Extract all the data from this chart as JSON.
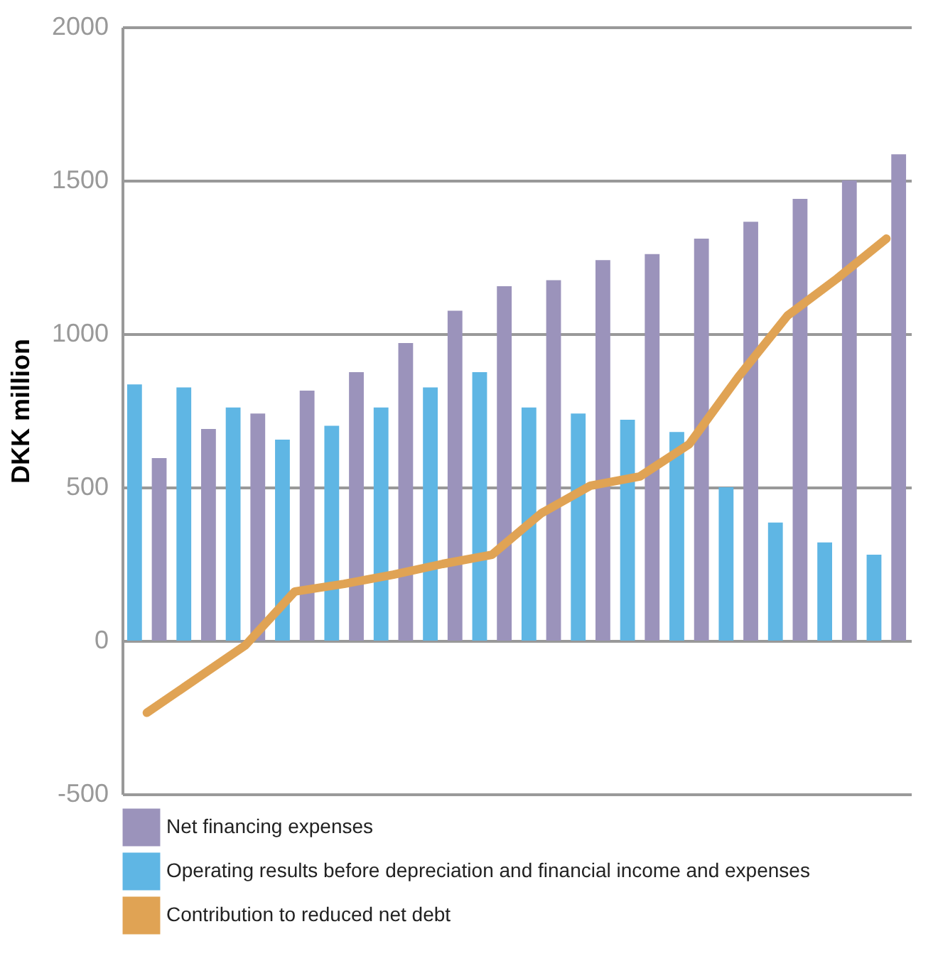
{
  "chart_data": {
    "type": "bar",
    "ylabel": "DKK million",
    "categories": [
      null,
      null,
      null,
      null,
      null,
      null,
      null,
      null,
      null,
      null,
      null,
      null,
      null,
      null,
      null,
      null
    ],
    "series": [
      {
        "name": "Net financing expenses",
        "color": "#9b93bb",
        "values": [
          595,
          690,
          740,
          815,
          875,
          970,
          1075,
          1155,
          1175,
          1240,
          1260,
          1310,
          1365,
          1440,
          1500,
          1585
        ]
      },
      {
        "name": "Operating results before depreciation and financial income and expenses",
        "color": "#5fb6e4",
        "values": [
          835,
          825,
          760,
          655,
          700,
          760,
          825,
          875,
          760,
          740,
          720,
          680,
          500,
          385,
          320,
          280
        ]
      },
      {
        "name": "Contribution to reduced net debt",
        "type": "line",
        "color": "#e0a354",
        "values": [
          -235,
          -125,
          -15,
          160,
          185,
          215,
          250,
          280,
          415,
          505,
          535,
          640,
          860,
          1060,
          1180,
          1310
        ]
      }
    ],
    "ylim": [
      -500,
      2000
    ],
    "yticks": [
      -500,
      0,
      500,
      1000,
      1500,
      2000
    ],
    "grid": "y",
    "legend": "bottom left",
    "tick_labels": "y",
    "marker": "none",
    "line_style": "solid"
  }
}
